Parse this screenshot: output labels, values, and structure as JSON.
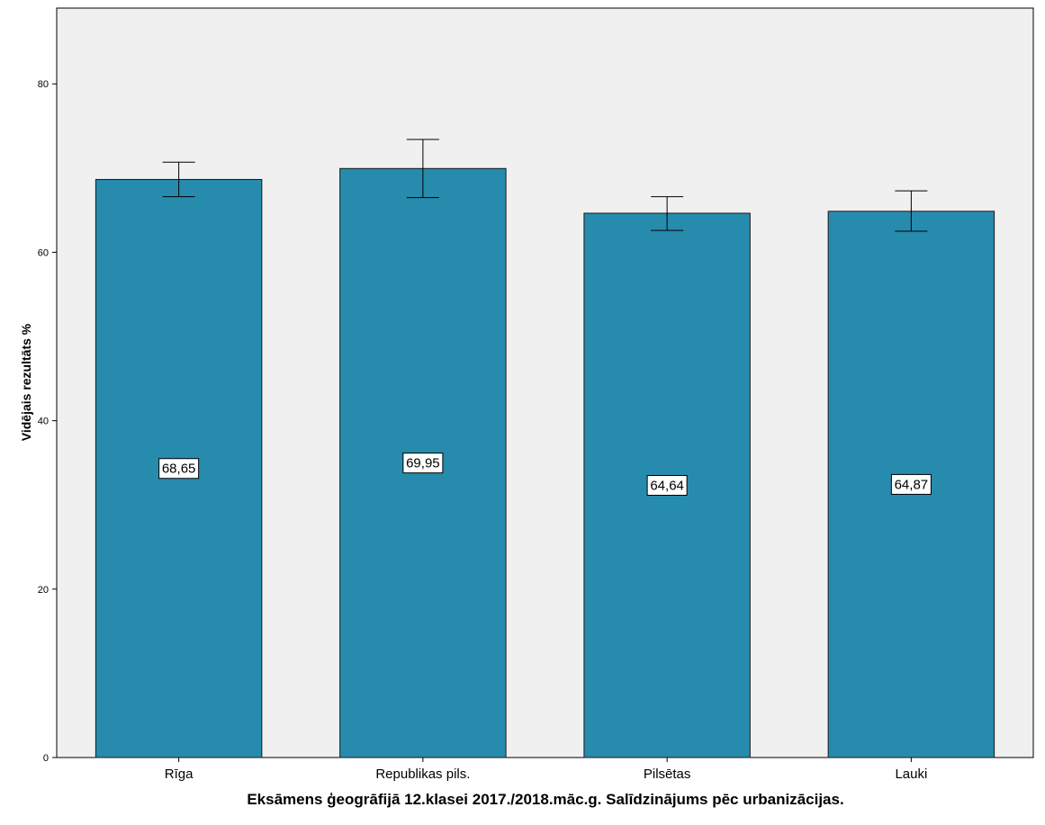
{
  "chart_data": {
    "type": "bar",
    "categories": [
      "Rīga",
      "Republikas pils.",
      "Pilsētas",
      "Lauki"
    ],
    "values": [
      68.65,
      69.95,
      64.64,
      64.87
    ],
    "value_labels": [
      "68,65",
      "69,95",
      "64,64",
      "64,87"
    ],
    "error_bars": [
      {
        "low": 66.6,
        "high": 70.7
      },
      {
        "low": 66.5,
        "high": 73.4
      },
      {
        "low": 62.6,
        "high": 66.6
      },
      {
        "low": 62.5,
        "high": 67.3
      }
    ],
    "xlabel": "Eksāmens ģeogrāfijā 12.klasei 2017./2018.māc.g. Salīdzinājums pēc urbanizācijas.",
    "ylabel": "Vidējais rezultāts %",
    "ylim": [
      0,
      89
    ],
    "yticks": [
      0,
      20,
      40,
      60,
      80
    ],
    "grid": false,
    "colors": {
      "bar": "#268bad",
      "plot_bg": "#f0f0f0",
      "border": "#000000"
    }
  }
}
